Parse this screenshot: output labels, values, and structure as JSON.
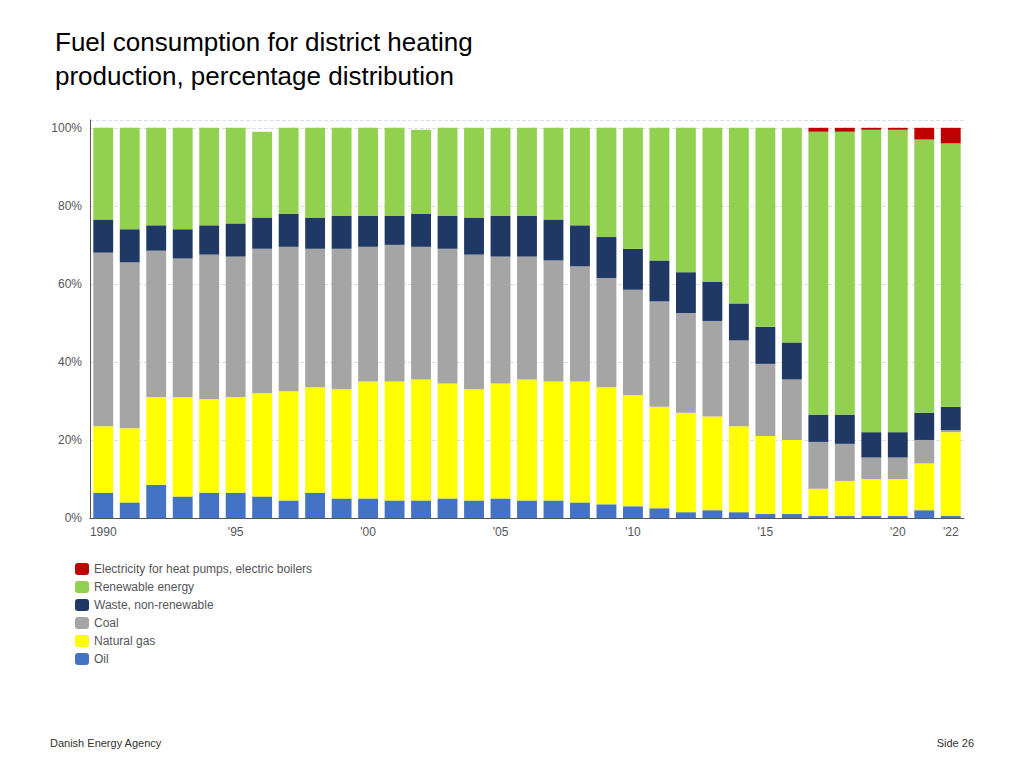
{
  "chart_data": {
    "type": "bar",
    "stacked": true,
    "title": "Fuel consumption for district heating\nproduction, percentage distribution",
    "categories": [
      "1990",
      null,
      null,
      null,
      null,
      "'95",
      null,
      null,
      null,
      null,
      "'00",
      null,
      null,
      null,
      null,
      "'05",
      null,
      null,
      null,
      null,
      "'10",
      null,
      null,
      null,
      null,
      "'15",
      null,
      null,
      null,
      null,
      "'20",
      null,
      "'22"
    ],
    "series": [
      {
        "name": "Oil",
        "color": "#4472C4",
        "values": [
          6.5,
          4.0,
          8.5,
          5.5,
          6.5,
          6.5,
          5.5,
          4.5,
          6.5,
          5.0,
          5.0,
          4.5,
          4.5,
          5.0,
          4.5,
          5.0,
          4.5,
          4.5,
          4.0,
          3.5,
          3.0,
          2.5,
          1.5,
          2.0,
          1.5,
          1.0,
          1.0,
          0.5,
          0.5,
          0.5,
          0.5,
          2.0,
          0.5
        ]
      },
      {
        "name": "Natural gas",
        "color": "#FFFF00",
        "values": [
          17.0,
          19.0,
          22.5,
          25.5,
          24.0,
          24.5,
          26.5,
          28.0,
          27.0,
          28.0,
          30.0,
          30.5,
          31.0,
          29.5,
          28.5,
          29.5,
          31.0,
          30.5,
          31.0,
          30.0,
          28.5,
          26.0,
          25.5,
          24.0,
          22.0,
          20.0,
          19.0,
          7.0,
          9.0,
          9.5,
          9.5,
          12.0,
          21.5
        ]
      },
      {
        "name": "Coal",
        "color": "#A5A5A5",
        "values": [
          44.5,
          42.5,
          37.5,
          35.5,
          37.0,
          36.0,
          37.0,
          37.0,
          35.5,
          36.0,
          34.5,
          35.0,
          34.0,
          34.5,
          34.5,
          32.5,
          31.5,
          31.0,
          29.5,
          28.0,
          27.0,
          27.0,
          25.5,
          24.5,
          22.0,
          18.5,
          15.5,
          12.0,
          9.5,
          5.5,
          5.5,
          6.0,
          0.5
        ]
      },
      {
        "name": "Waste, non-renewable",
        "color": "#1F3864",
        "values": [
          8.5,
          8.5,
          6.5,
          7.5,
          7.5,
          8.5,
          8.0,
          8.5,
          8.0,
          8.5,
          8.0,
          7.5,
          8.5,
          8.5,
          9.5,
          10.5,
          10.5,
          10.5,
          10.5,
          10.5,
          10.5,
          10.5,
          10.5,
          10.0,
          9.5,
          9.5,
          9.5,
          7.0,
          7.5,
          6.5,
          6.5,
          7.0,
          6.0
        ]
      },
      {
        "name": "Renewable energy",
        "color": "#92D050",
        "values": [
          23.5,
          26.0,
          25.0,
          26.0,
          25.0,
          24.5,
          22.0,
          22.0,
          23.0,
          22.5,
          22.5,
          22.5,
          21.5,
          22.5,
          23.0,
          22.5,
          22.5,
          23.5,
          25.0,
          28.0,
          31.0,
          34.0,
          37.0,
          39.5,
          45.0,
          51.0,
          55.0,
          72.5,
          72.5,
          77.5,
          77.5,
          70.0,
          67.5
        ]
      },
      {
        "name": "Electricity for heat pumps, electric boilers",
        "color": "#C00000",
        "values": [
          0.0,
          0.0,
          0.0,
          0.0,
          0.0,
          0.0,
          0.0,
          0.0,
          0.0,
          0.0,
          0.0,
          0.0,
          0.0,
          0.0,
          0.0,
          0.0,
          0.0,
          0.0,
          0.0,
          0.0,
          0.0,
          0.0,
          0.0,
          0.0,
          0.0,
          0.0,
          0.0,
          1.0,
          1.0,
          0.5,
          0.5,
          3.0,
          4.0
        ]
      }
    ],
    "ylim": [
      0,
      102
    ],
    "yticks": [
      {
        "value": 0,
        "label": "0%"
      },
      {
        "value": 20,
        "label": "20%"
      },
      {
        "value": 40,
        "label": "40%"
      },
      {
        "value": 60,
        "label": "60%"
      },
      {
        "value": 80,
        "label": "80%"
      },
      {
        "value": 100,
        "label": "100%"
      }
    ],
    "grid": true,
    "legend": "lower-left",
    "annotations": [
      "Danish Energy Agency",
      "Side 26"
    ]
  }
}
